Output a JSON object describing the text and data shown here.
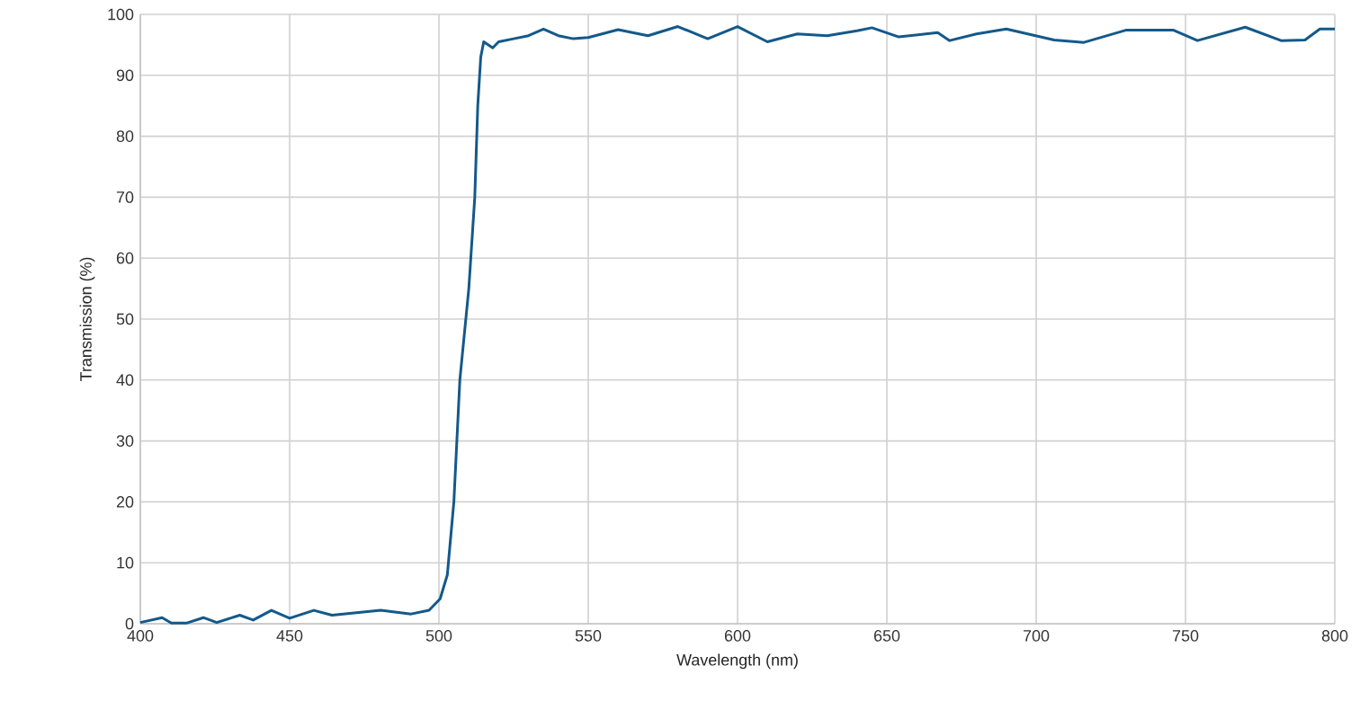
{
  "chart_data": {
    "type": "line",
    "xlabel": "Wavelength (nm)",
    "ylabel": "Transmission (%)",
    "xlim": [
      400,
      800
    ],
    "ylim": [
      0,
      100
    ],
    "xticks": [
      400,
      450,
      500,
      550,
      600,
      650,
      700,
      750,
      800
    ],
    "yticks": [
      0,
      10,
      20,
      30,
      40,
      50,
      60,
      70,
      80,
      90,
      100
    ],
    "grid": true,
    "marker": "none",
    "line_style": "solid",
    "series": [
      {
        "color": "#14598a",
        "x": [
          400,
          407.3,
          410.4,
          415.4,
          421.1,
          425.6,
          433.3,
          437.8,
          443.9,
          450,
          458.1,
          464.2,
          480.5,
          490.7,
          496.7,
          500.4,
          502.8,
          505,
          507,
          510,
          512,
          513,
          514,
          515,
          518,
          520,
          525,
          530,
          535,
          540,
          545,
          550,
          560,
          570,
          580,
          590,
          600,
          610,
          620,
          630,
          640,
          645,
          654,
          667,
          671,
          680,
          690,
          706,
          716,
          730,
          746,
          754,
          770,
          782,
          790,
          795,
          800
        ],
        "values": [
          0.2,
          1.0,
          0.1,
          0.1,
          1.0,
          0.2,
          1.4,
          0.6,
          2.2,
          0.9,
          2.2,
          1.4,
          2.2,
          1.6,
          2.2,
          4.1,
          8,
          20,
          40,
          55,
          70,
          85,
          93,
          95.5,
          94.5,
          95.5,
          96,
          96.5,
          97.6,
          96.5,
          96,
          96.2,
          97.5,
          96.5,
          98,
          96,
          98,
          95.5,
          96.8,
          96.5,
          97.3,
          97.8,
          96.3,
          97,
          95.7,
          96.8,
          97.6,
          95.8,
          95.4,
          97.4,
          97.4,
          95.7,
          97.9,
          95.7,
          95.8,
          97.6,
          97.6
        ]
      }
    ]
  }
}
